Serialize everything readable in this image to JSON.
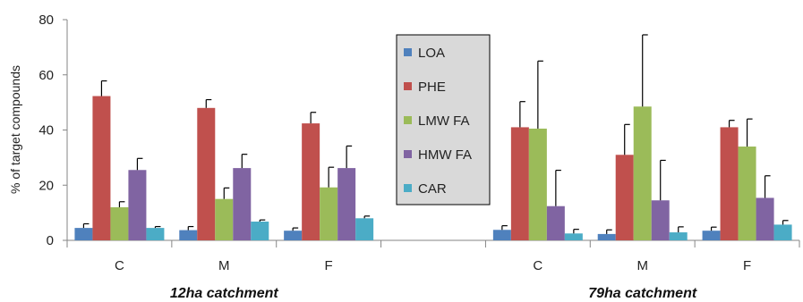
{
  "chart_data": {
    "type": "bar",
    "ylabel": "% of target compounds",
    "ylim": [
      0,
      80
    ],
    "yticks": [
      0,
      20,
      40,
      60,
      80
    ],
    "grid": false,
    "legend_position": "top-center",
    "groups": [
      {
        "label": "12ha catchment",
        "categories": [
          "C",
          "M",
          "F"
        ]
      },
      {
        "label": "79ha catchment",
        "categories": [
          "C",
          "M",
          "F"
        ]
      }
    ],
    "categories": [
      "C",
      "M",
      "F",
      "",
      "C",
      "M",
      "F"
    ],
    "series": [
      {
        "name": "LOA",
        "color": "#4f81bd",
        "values": [
          4.5,
          3.7,
          3.5,
          null,
          3.8,
          2.3,
          3.5
        ],
        "errors": [
          1.5,
          1.3,
          1.0,
          null,
          1.5,
          1.5,
          1.3
        ]
      },
      {
        "name": "PHE",
        "color": "#c0504d",
        "values": [
          52.3,
          48,
          42.4,
          null,
          41,
          31,
          41
        ],
        "errors": [
          5.5,
          3,
          4,
          null,
          9.3,
          11,
          2.5
        ]
      },
      {
        "name": "LMW FA",
        "color": "#9bbb59",
        "values": [
          12,
          15,
          19.2,
          null,
          40.5,
          48.5,
          34
        ],
        "errors": [
          2,
          4,
          7.3,
          null,
          24.5,
          26,
          10
        ]
      },
      {
        "name": "HMW FA",
        "color": "#8064a2",
        "values": [
          25.5,
          26.2,
          26.2,
          null,
          12.4,
          14.5,
          15.4
        ],
        "errors": [
          4.2,
          5,
          8,
          null,
          13,
          14.5,
          8
        ]
      },
      {
        "name": "CAR",
        "color": "#4bacc6",
        "values": [
          4.5,
          6.8,
          8,
          null,
          2.5,
          2.9,
          5.7
        ],
        "errors": [
          0.5,
          0.6,
          0.8,
          null,
          1.5,
          2,
          1.5
        ]
      }
    ]
  }
}
